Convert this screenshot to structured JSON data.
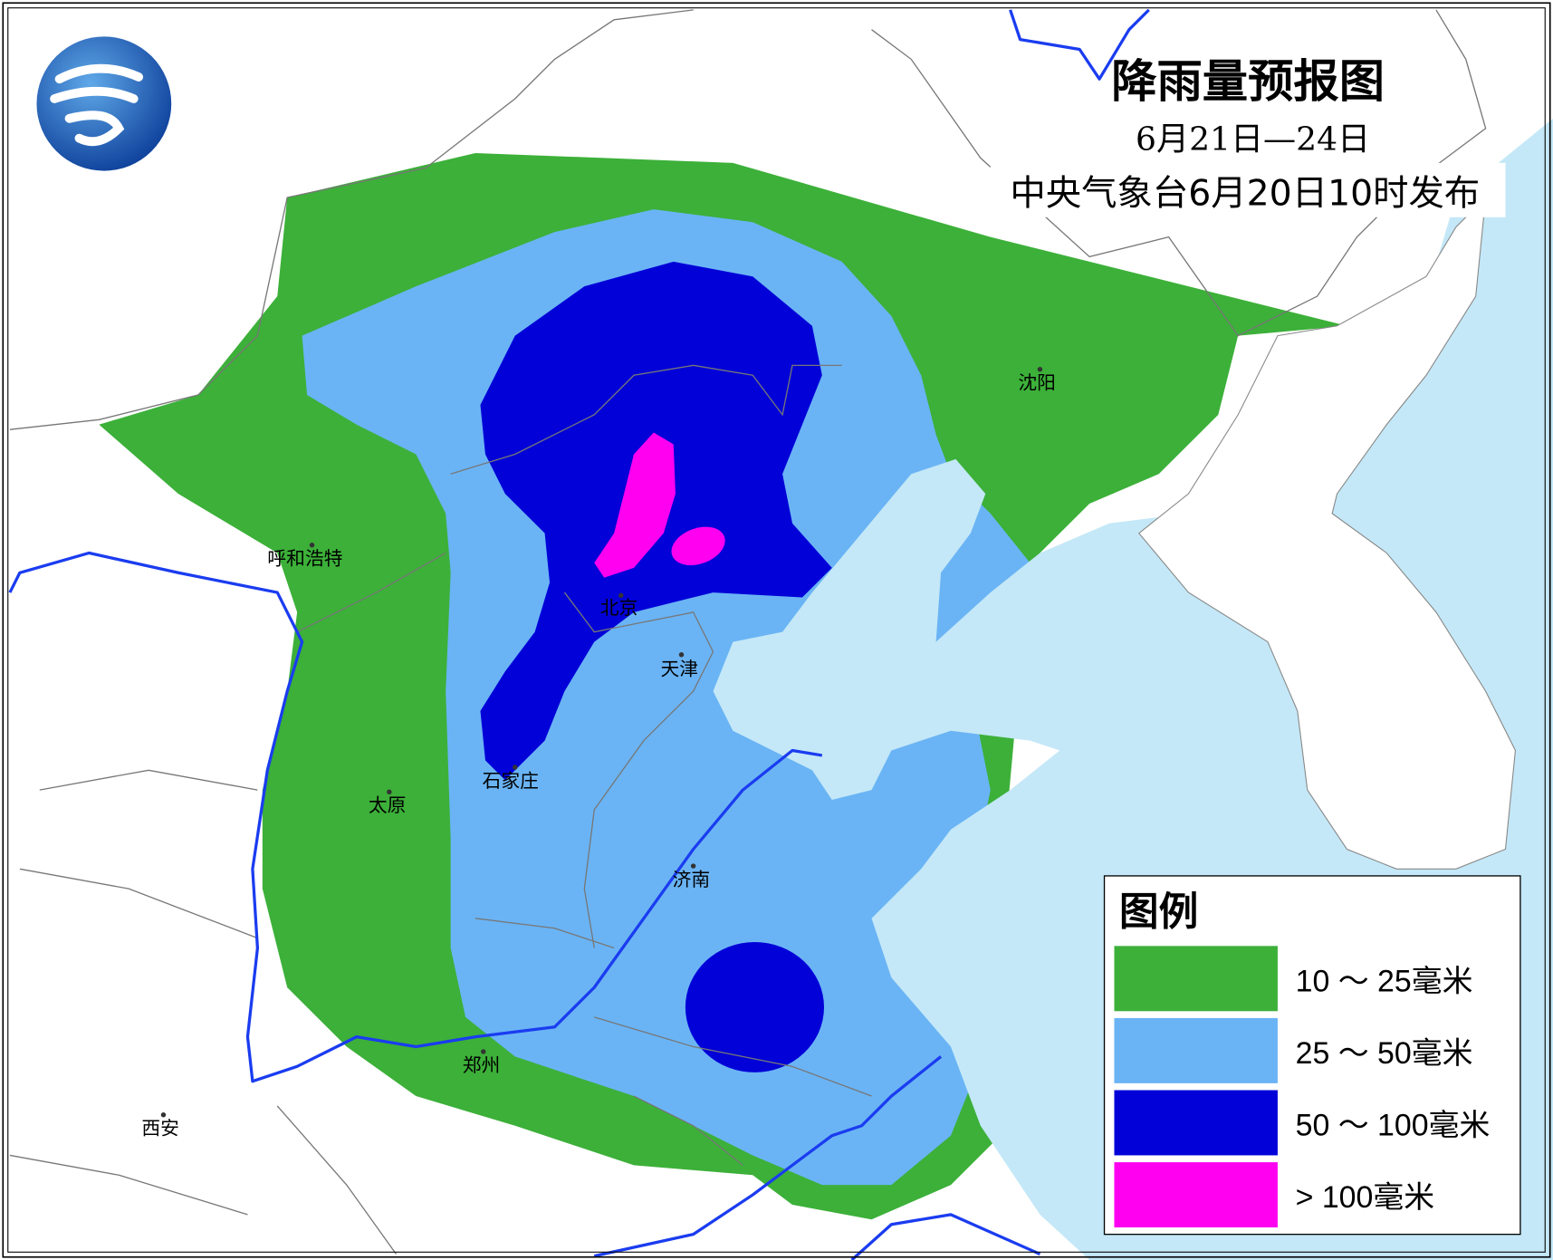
{
  "title": "降雨量预报图",
  "period": "6月21日—24日",
  "issuer": "中央气象台6月20日10时发布",
  "legend": {
    "title": "图例",
    "items": [
      {
        "label": "10 ～ 25毫米",
        "color": "#3cb039"
      },
      {
        "label": "25 ～ 50毫米",
        "color": "#6ab4f5"
      },
      {
        "label": "50 ～ 100毫米",
        "color": "#0202d8"
      },
      {
        "label": "> 100毫米",
        "color": "#ff00f0"
      }
    ]
  },
  "cities": [
    "呼和浩特",
    "北京",
    "天津",
    "石家庄",
    "太原",
    "济南",
    "郑州",
    "西安",
    "沈阳"
  ],
  "colors": {
    "sea": "#c4e8f7",
    "sea_deep": "#a8dcf5",
    "river": "#1a3cf0",
    "boundary": "#777777"
  },
  "logo": "china-meteorological-administration-emblem"
}
